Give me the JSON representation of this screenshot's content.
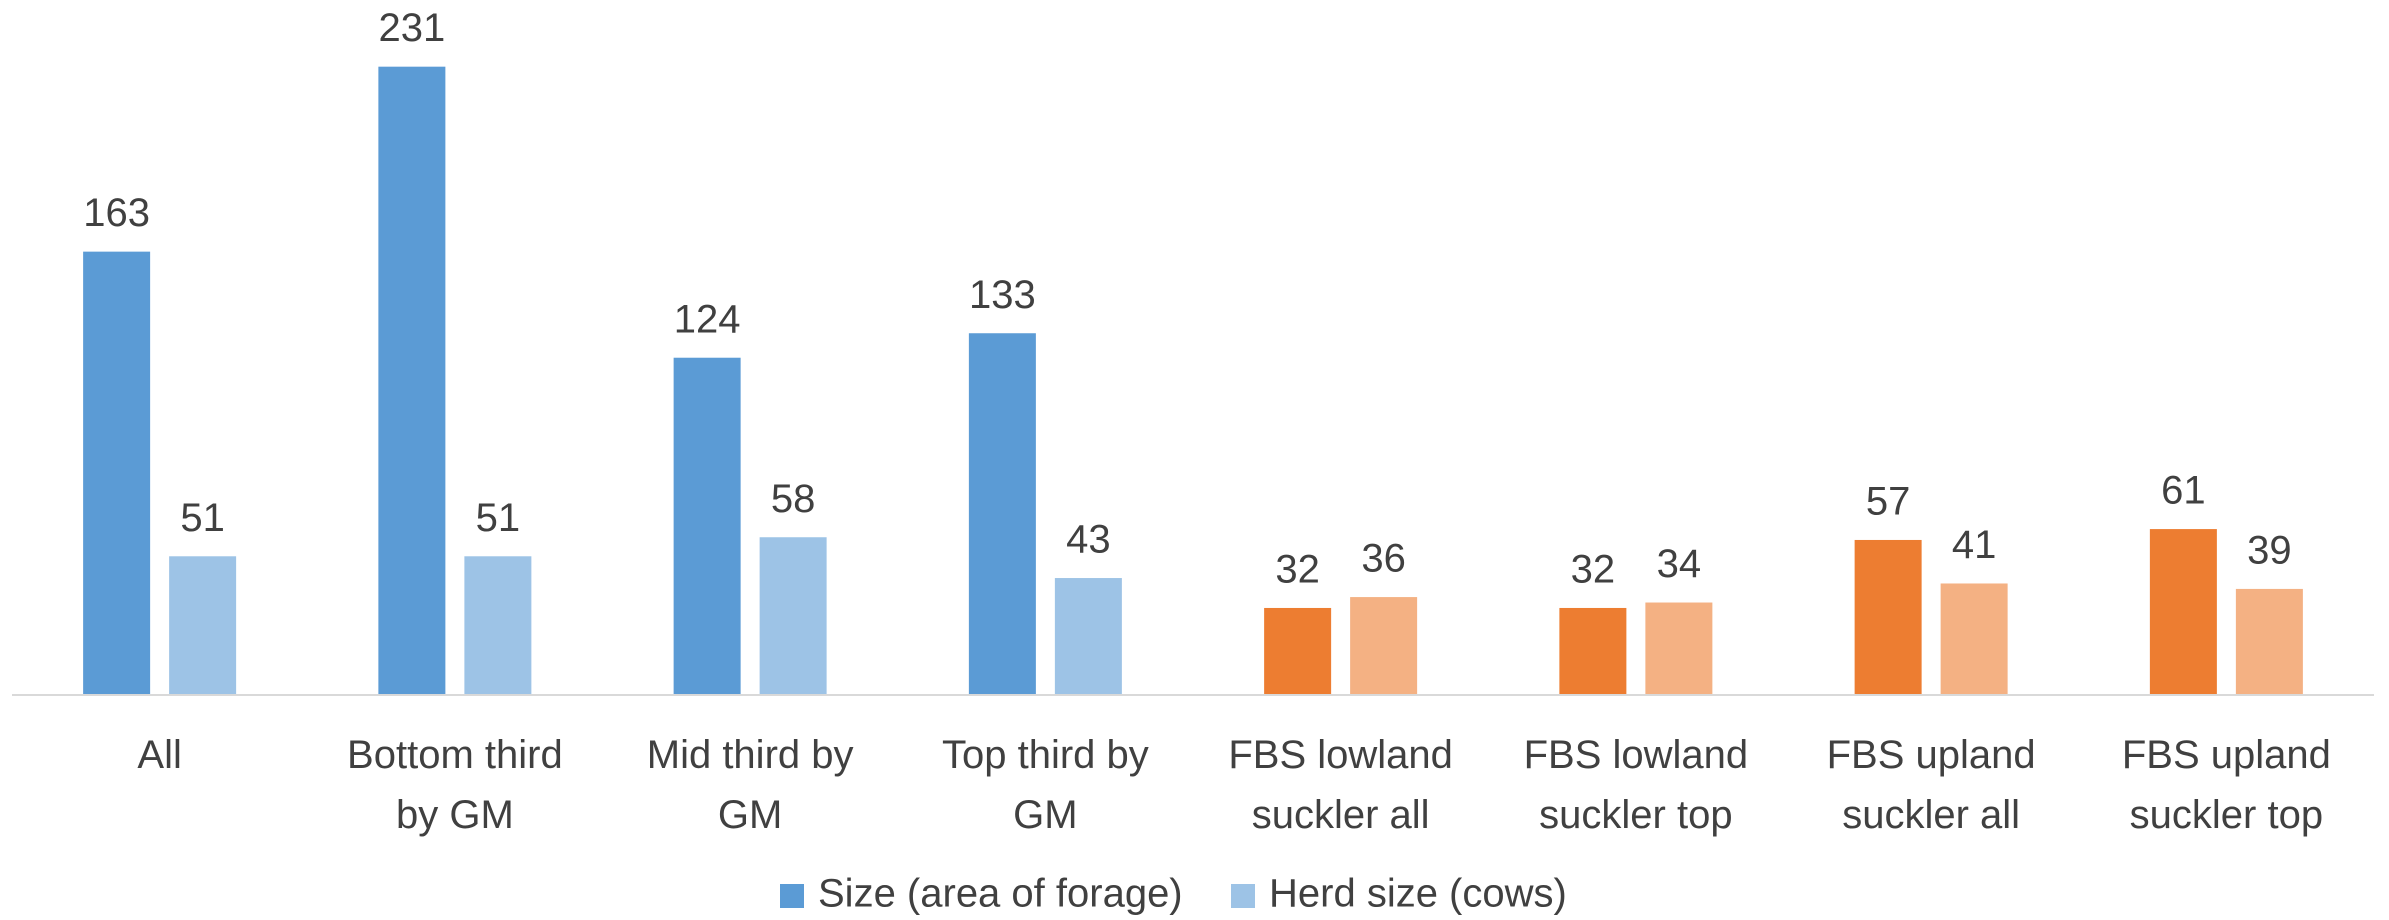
{
  "chart_data": {
    "type": "bar",
    "categories": [
      [
        "All"
      ],
      [
        "Bottom third",
        "by GM"
      ],
      [
        "Mid third by",
        "GM"
      ],
      [
        "Top third by",
        "GM"
      ],
      [
        "FBS lowland",
        "suckler all"
      ],
      [
        "FBS lowland",
        "suckler top"
      ],
      [
        "FBS upland",
        "suckler all"
      ],
      [
        "FBS upland",
        "suckler top"
      ]
    ],
    "series": [
      {
        "name": "Size (area of forage)",
        "color": "#5b9bd5",
        "colors": [
          "#5b9bd5",
          "#5b9bd5",
          "#5b9bd5",
          "#5b9bd5",
          "#ed7d31",
          "#ed7d31",
          "#ed7d31",
          "#ed7d31"
        ],
        "values": [
          163,
          231,
          124,
          133,
          32,
          32,
          57,
          61
        ]
      },
      {
        "name": "Herd size (cows)",
        "color": "#9dc3e6",
        "colors": [
          "#9dc3e6",
          "#9dc3e6",
          "#9dc3e6",
          "#9dc3e6",
          "#f4b183",
          "#f4b183",
          "#f4b183",
          "#f4b183"
        ],
        "values": [
          51,
          51,
          58,
          43,
          36,
          34,
          41,
          39
        ]
      }
    ],
    "ylim": [
      0,
      250
    ],
    "legend": "bottom"
  }
}
